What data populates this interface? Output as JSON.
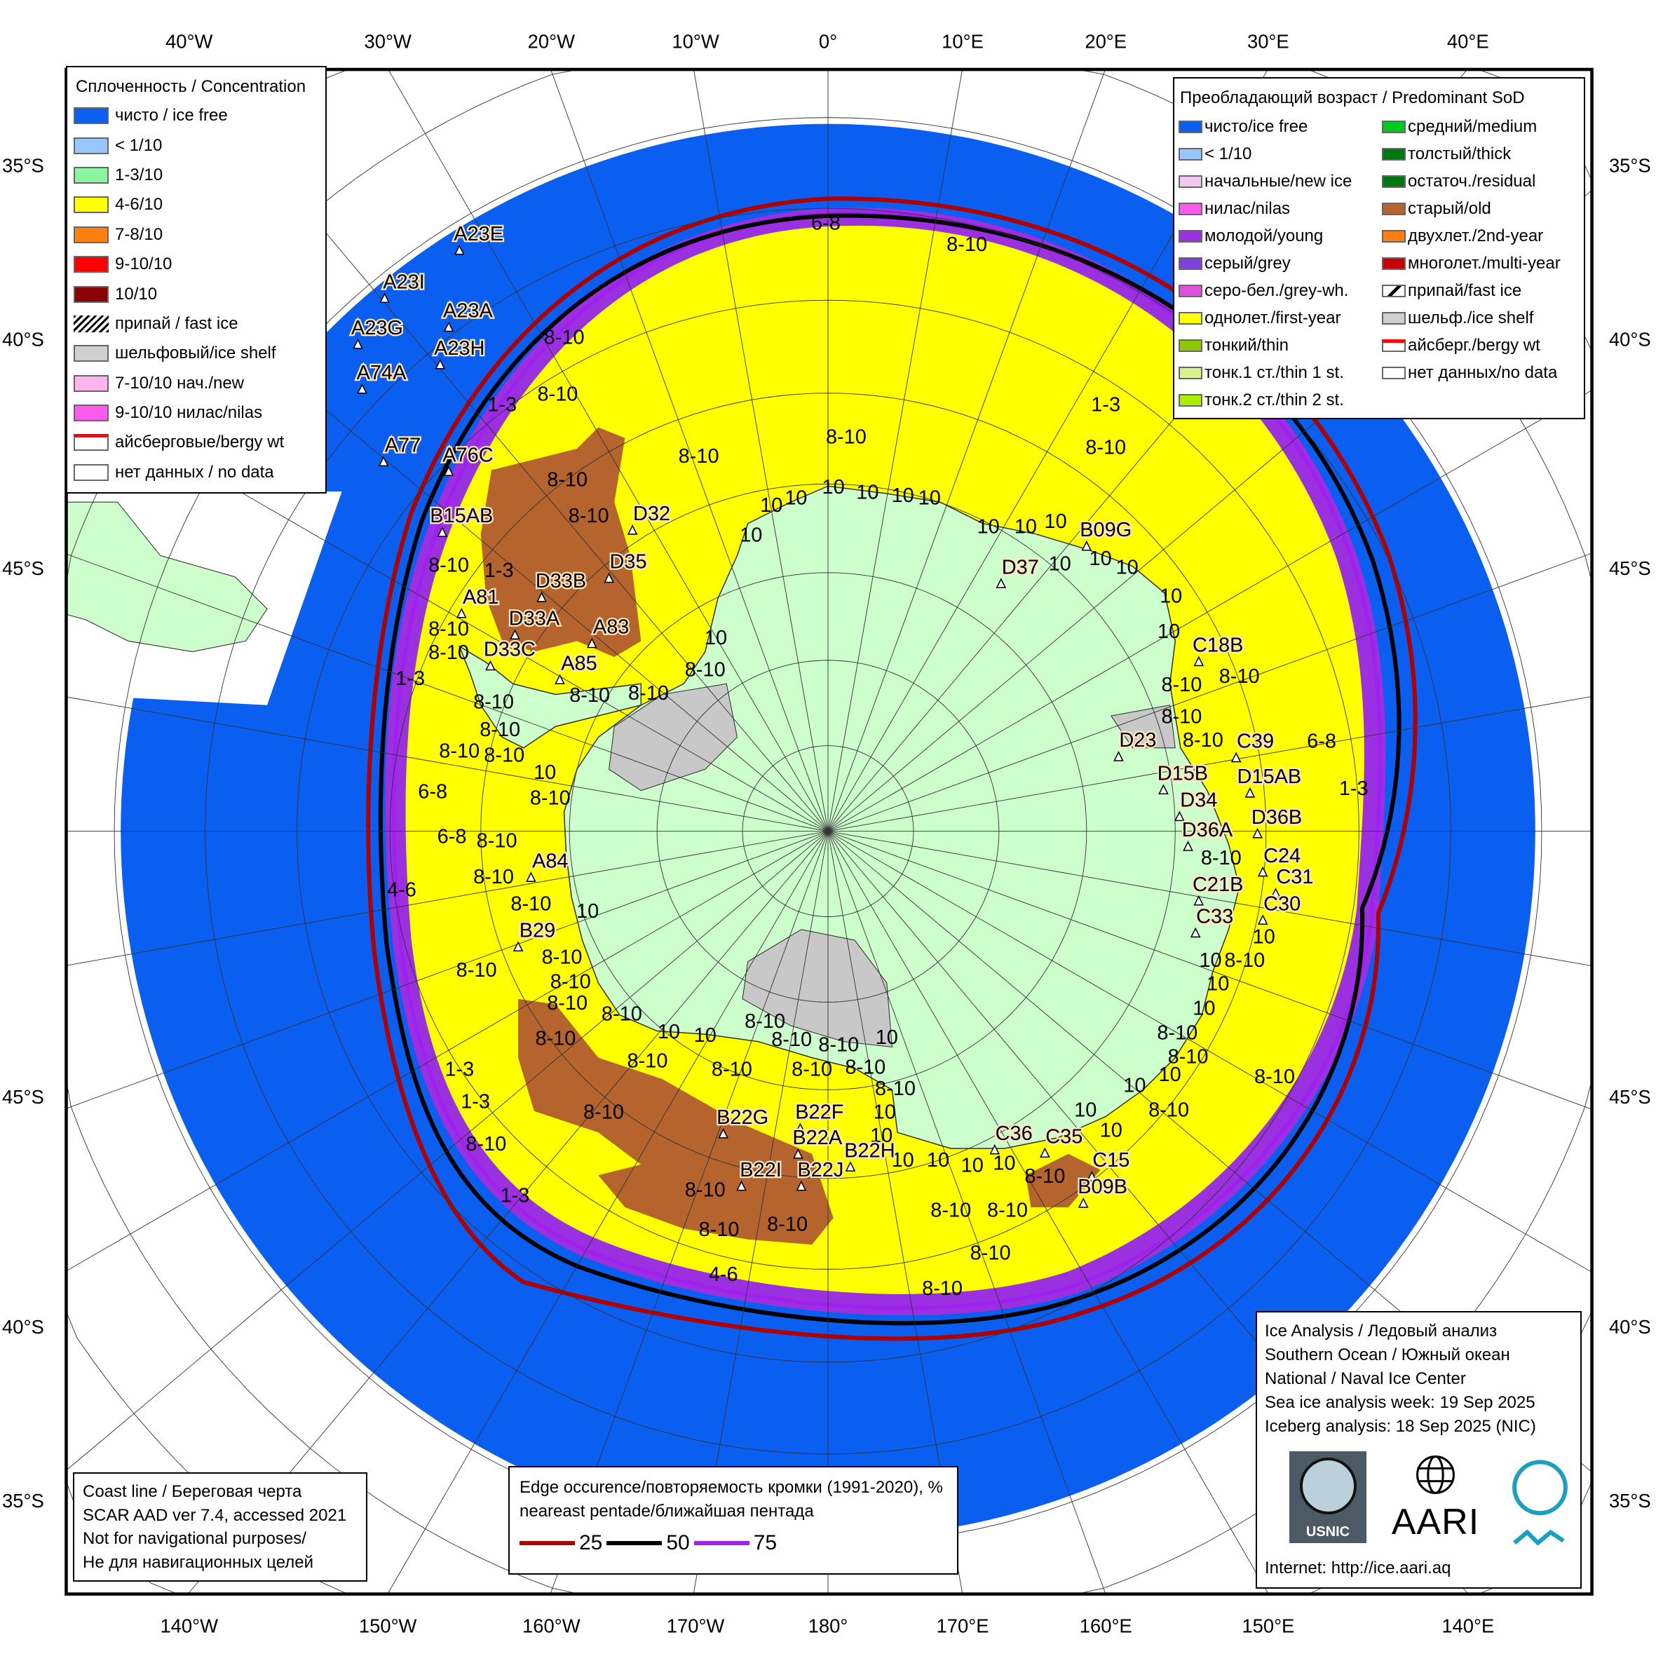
{
  "map": {
    "colors": {
      "ice_free": "#0a5ef0",
      "first_year": "#ffff00",
      "young": "#9b30e0",
      "old": "#b5642e",
      "land": "#ccffcc",
      "ice_shelf": "#c8c8c8",
      "edge_25": "#b00000",
      "edge_50": "#000000",
      "edge_75": "#a020f0"
    },
    "top_longitudes": [
      "40°W",
      "30°W",
      "20°W",
      "10°W",
      "0°",
      "10°E",
      "20°E",
      "30°E",
      "40°E"
    ],
    "bottom_longitudes": [
      "140°W",
      "150°W",
      "160°W",
      "170°W",
      "180°",
      "170°E",
      "160°E",
      "150°E",
      "140°E"
    ],
    "left_latitudes": [
      "35°S",
      "40°S",
      "45°S",
      "45°S",
      "40°S",
      "35°S"
    ],
    "right_latitudes": [
      "35°S",
      "40°S",
      "45°S",
      "45°S",
      "40°S",
      "35°S"
    ],
    "icebergs": [
      "A23E",
      "A23I",
      "A23A",
      "A23G",
      "A23H",
      "A74A",
      "A77",
      "A76C",
      "B15AB",
      "D32",
      "D35",
      "D33B",
      "A81",
      "D33A",
      "A83",
      "D33C",
      "A85",
      "B09G",
      "D37",
      "C18B",
      "C39",
      "D23",
      "D15B",
      "D15AB",
      "D34",
      "D36B",
      "D36A",
      "C24",
      "C31",
      "C21B",
      "C30",
      "C33",
      "A84",
      "B29",
      "B22G",
      "B22F",
      "B22A",
      "B22H",
      "B22I",
      "B22J",
      "C36",
      "C35",
      "C15",
      "B09B"
    ],
    "concentration_labels": [
      "6-8",
      "8-10",
      "8-10",
      "8-10",
      "1-3",
      "8-10",
      "8-10",
      "1-3",
      "8-10",
      "8-10",
      "8-10",
      "1-3",
      "8-10",
      "8-10",
      "8-10",
      "1-3",
      "8-10",
      "8-10",
      "8-10",
      "10",
      "8-10",
      "8-10",
      "8-10",
      "8-10",
      "10",
      "8-10",
      "6-8",
      "6-8",
      "8-10",
      "8-10",
      "4-6",
      "8-10",
      "10",
      "8-10",
      "8-10",
      "8-10",
      "8-10",
      "8-10",
      "8-10",
      "10",
      "10",
      "8-10",
      "8-10",
      "8-10",
      "10",
      "8-10",
      "8-10",
      "8-10",
      "8-10",
      "8-10",
      "10",
      "10",
      "8-10",
      "1-3",
      "1-3",
      "8-10",
      "1-3",
      "8-10",
      "8-10",
      "8-10",
      "10",
      "10",
      "10",
      "10",
      "8-10",
      "8-10",
      "8-10",
      "8-10",
      "4-6",
      "8-10",
      "10",
      "10",
      "10",
      "8-10",
      "8-10",
      "8-10",
      "10",
      "10",
      "10",
      "8-10",
      "10",
      "8-10",
      "8-10",
      "8-10",
      "8-10",
      "8-10",
      "8-10",
      "6-8",
      "1-3",
      "10",
      "10",
      "10",
      "10",
      "10",
      "10",
      "10",
      "10",
      "10",
      "10",
      "10",
      "10",
      "10",
      "10",
      "10",
      "10"
    ]
  },
  "concentration_legend": {
    "title": "Сплоченность / Concentration",
    "items": [
      {
        "label": "чисто / ice free",
        "color": "#0a5ef0"
      },
      {
        "label": "< 1/10",
        "color": "#96c8ff"
      },
      {
        "label": "1-3/10",
        "color": "#8cf5a0"
      },
      {
        "label": "4-6/10",
        "color": "#ffff00"
      },
      {
        "label": "7-8/10",
        "color": "#ff7f10"
      },
      {
        "label": "9-10/10",
        "color": "#ff0000"
      },
      {
        "label": "10/10",
        "color": "#8b0000"
      },
      {
        "label": "припай / fast ice",
        "color": "hatch"
      },
      {
        "label": "шельфовый/ice shelf",
        "color": "#d0d0d0"
      },
      {
        "label": "7-10/10 нач./new",
        "color": "#ffb4f0"
      },
      {
        "label": "9-10/10 нилас/nilas",
        "color": "#ff5af0"
      },
      {
        "label": "айсберговые/bergy wt",
        "color": "bergy"
      },
      {
        "label": "нет данных / no data",
        "color": "#ffffff"
      }
    ]
  },
  "sod_legend": {
    "title": "Преобладающий возраст / Predominant SoD",
    "left": [
      {
        "label": "чисто/ice free",
        "color": "#0a5ef0"
      },
      {
        "label": "< 1/10",
        "color": "#96c8ff"
      },
      {
        "label": "начальные/new ice",
        "color": "#f0c8f0"
      },
      {
        "label": "нилас/nilas",
        "color": "#ff5af0"
      },
      {
        "label": "молодой/young",
        "color": "#9b30e0"
      },
      {
        "label": "серый/grey",
        "color": "#8040e0"
      },
      {
        "label": "серо-бел./grey-wh.",
        "color": "#e050e0"
      },
      {
        "label": "однолет./first-year",
        "color": "#ffff00"
      },
      {
        "label": "тонкий/thin",
        "color": "#90c800"
      },
      {
        "label": "тонк.1 ст./thin 1 st.",
        "color": "#d8f090"
      },
      {
        "label": "тонк.2 ст./thin 2 st.",
        "color": "#a8f000"
      }
    ],
    "right": [
      {
        "label": "средний/medium",
        "color": "#00c820"
      },
      {
        "label": "толстый/thick",
        "color": "#007810"
      },
      {
        "label": "остаточ./residual",
        "color": "#007810"
      },
      {
        "label": "старый/old",
        "color": "#b5642e"
      },
      {
        "label": "двухлет./2nd-year",
        "color": "#ff7f10"
      },
      {
        "label": "многолет./multi-year",
        "color": "#c80000"
      },
      {
        "label": "припай/fast ice",
        "color": "fast"
      },
      {
        "label": "шельф./ice shelf",
        "color": "#d0d0d0"
      },
      {
        "label": "айсберг./bergy wt",
        "color": "bergy"
      },
      {
        "label": "нет данных/no data",
        "color": "#ffffff"
      }
    ]
  },
  "coast_box": {
    "lines": [
      "Coast line / Береговая черта",
      "SCAR AAD ver 7.4, accessed 2021",
      "Not for navigational purposes/",
      "Не для навигационных целей"
    ]
  },
  "edge_box": {
    "title": "Edge occurence/повторяемость кромки (1991-2020), %",
    "subtitle": "neareast pentade/ближайшая пентада",
    "items": [
      {
        "label": "25",
        "color": "#b00000"
      },
      {
        "label": "50",
        "color": "#000000"
      },
      {
        "label": "75",
        "color": "#a020f0"
      }
    ]
  },
  "info_box": {
    "lines": [
      "Ice Analysis / Ледовый анализ",
      "Southern Ocean / Южный океан",
      "National / Naval Ice Center",
      "Sea ice analysis week: 19 Sep 2025",
      "Iceberg analysis: 18 Sep 2025 (NIC)"
    ],
    "logos": [
      "USNIC",
      "AARI"
    ],
    "internet": "Internet: http://ice.aari.aq"
  }
}
